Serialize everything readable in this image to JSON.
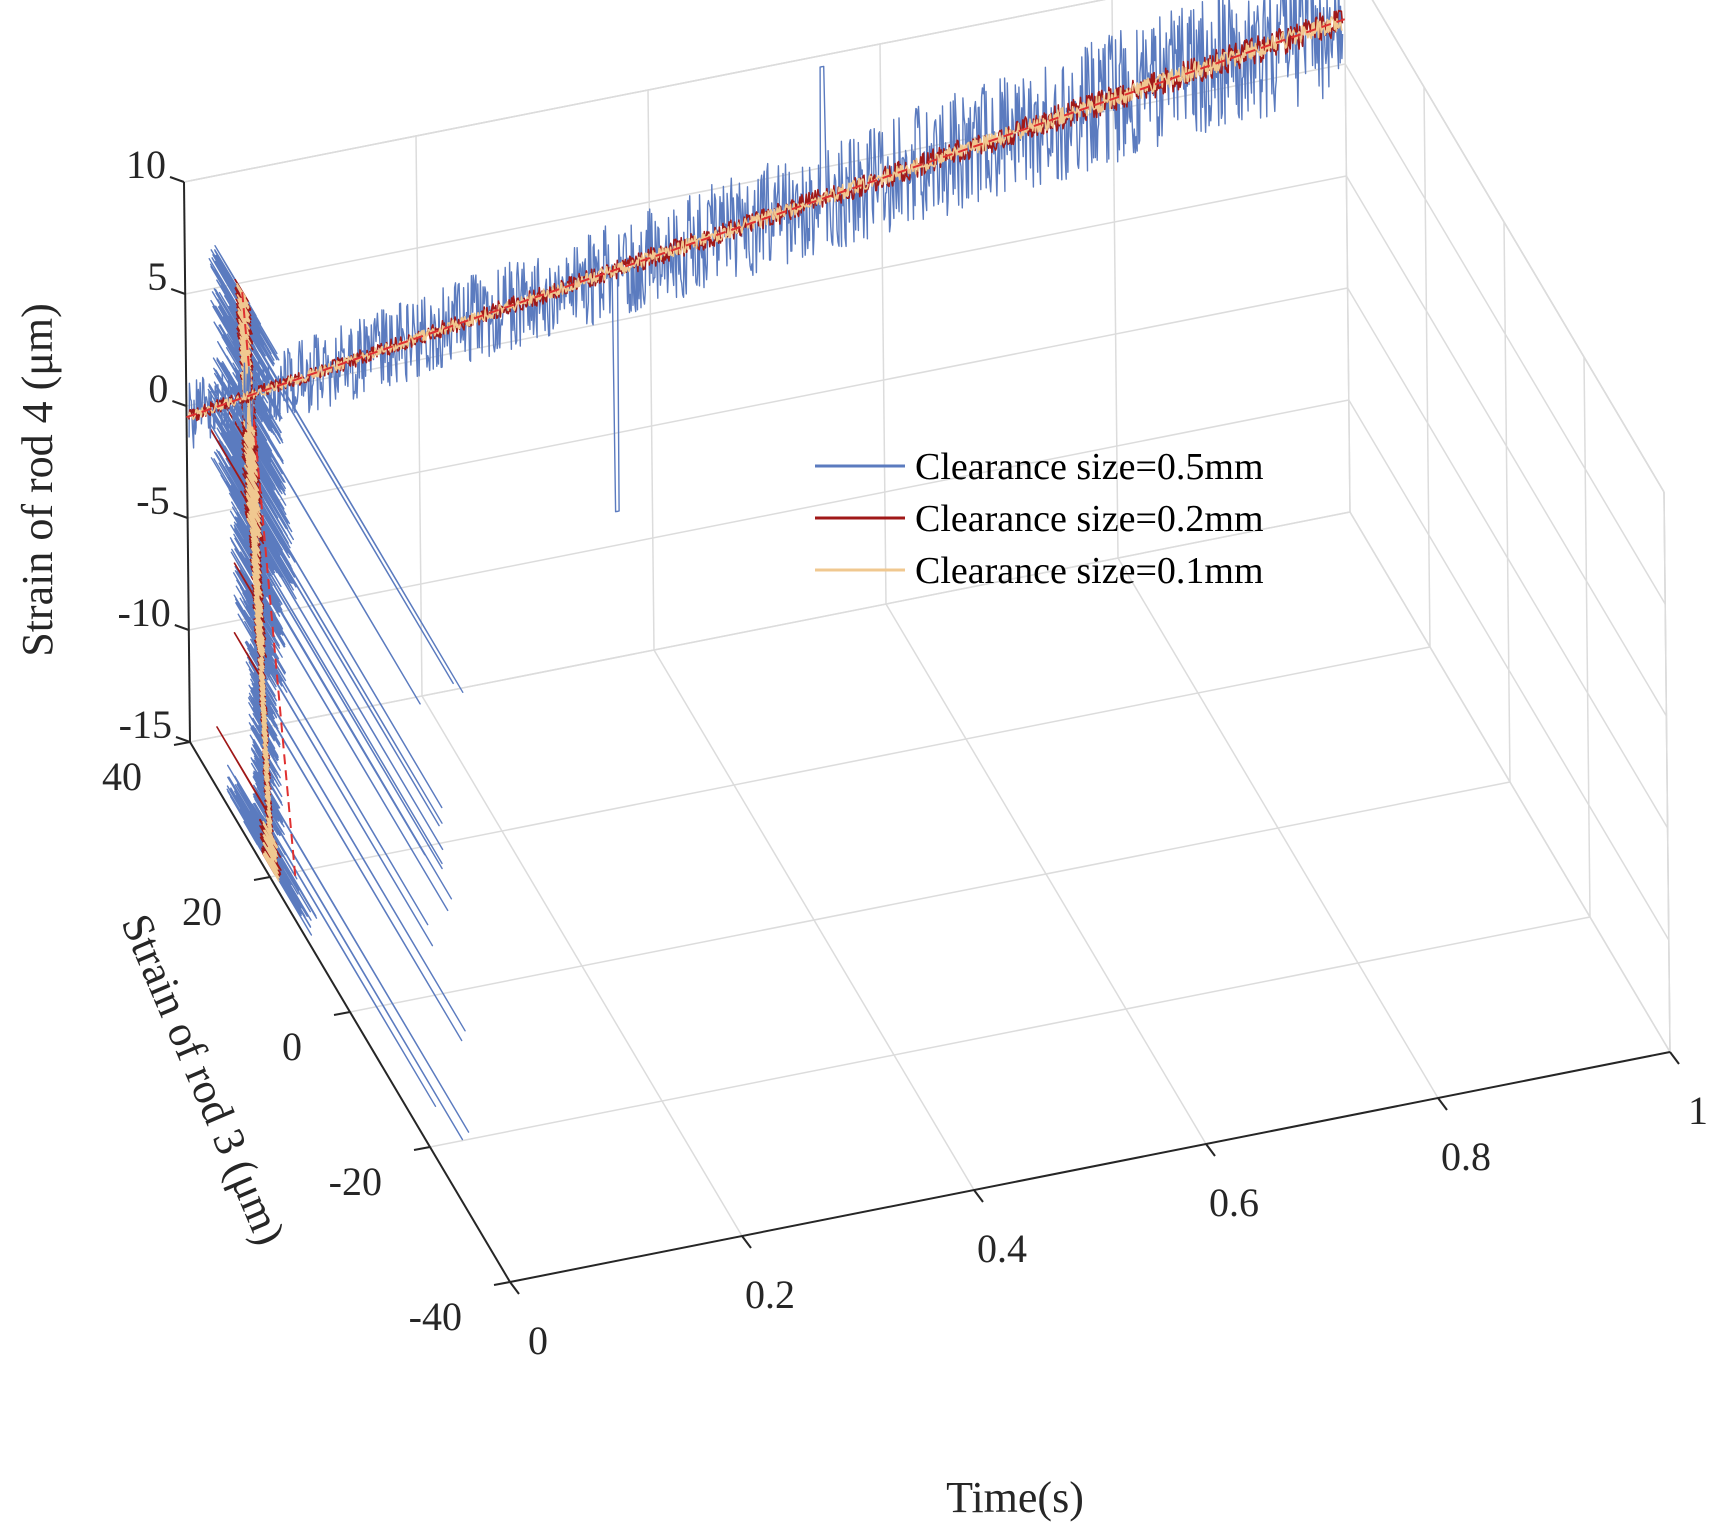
{
  "chart_data": {
    "type": "line",
    "subtype": "3d-line",
    "xlabel": "Time(s)",
    "ylabel": "Strain of rod 3 (μm)",
    "zlabel": "Strain of rod 4 (μm)",
    "xlim": [
      0,
      1
    ],
    "ylim": [
      -40,
      40
    ],
    "zlim": [
      -15,
      10
    ],
    "x_ticks": [
      "0",
      "0.2",
      "0.4",
      "0.6",
      "0.8",
      "1"
    ],
    "y_ticks": [
      "-40",
      "-20",
      "0",
      "20",
      "40"
    ],
    "z_ticks": [
      "-15",
      "-10",
      "-5",
      "0",
      "5",
      "10"
    ],
    "grid": true,
    "legend_position": "top-right",
    "series": [
      {
        "name": "Clearance size=0.5mm",
        "color": "#5b7bbf",
        "rod4_trend": [
          -0.5,
          7.0
        ],
        "rod4_amplitude": 3.0,
        "rod4_spike_min": -8.5,
        "rod4_spike_max": 9.5,
        "rod3_trend": [
          19.5,
          25.5
        ],
        "rod3_amplitude": 9.0
      },
      {
        "name": "Clearance size=0.2mm",
        "color": "#a01818",
        "rod4_trend": [
          -0.5,
          7.0
        ],
        "rod4_amplitude": 0.6,
        "rod3_trend": [
          19.5,
          25.5
        ],
        "rod3_amplitude": 2.0
      },
      {
        "name": "Clearance size=0.1mm",
        "color": "#f0c890",
        "rod4_trend": [
          -0.5,
          7.0
        ],
        "rod4_amplitude": 0.4,
        "rod3_trend": [
          19.5,
          25.5
        ],
        "rod3_amplitude": 1.5
      }
    ],
    "mean_line": {
      "color": "#e03030",
      "style": "dashed"
    }
  }
}
